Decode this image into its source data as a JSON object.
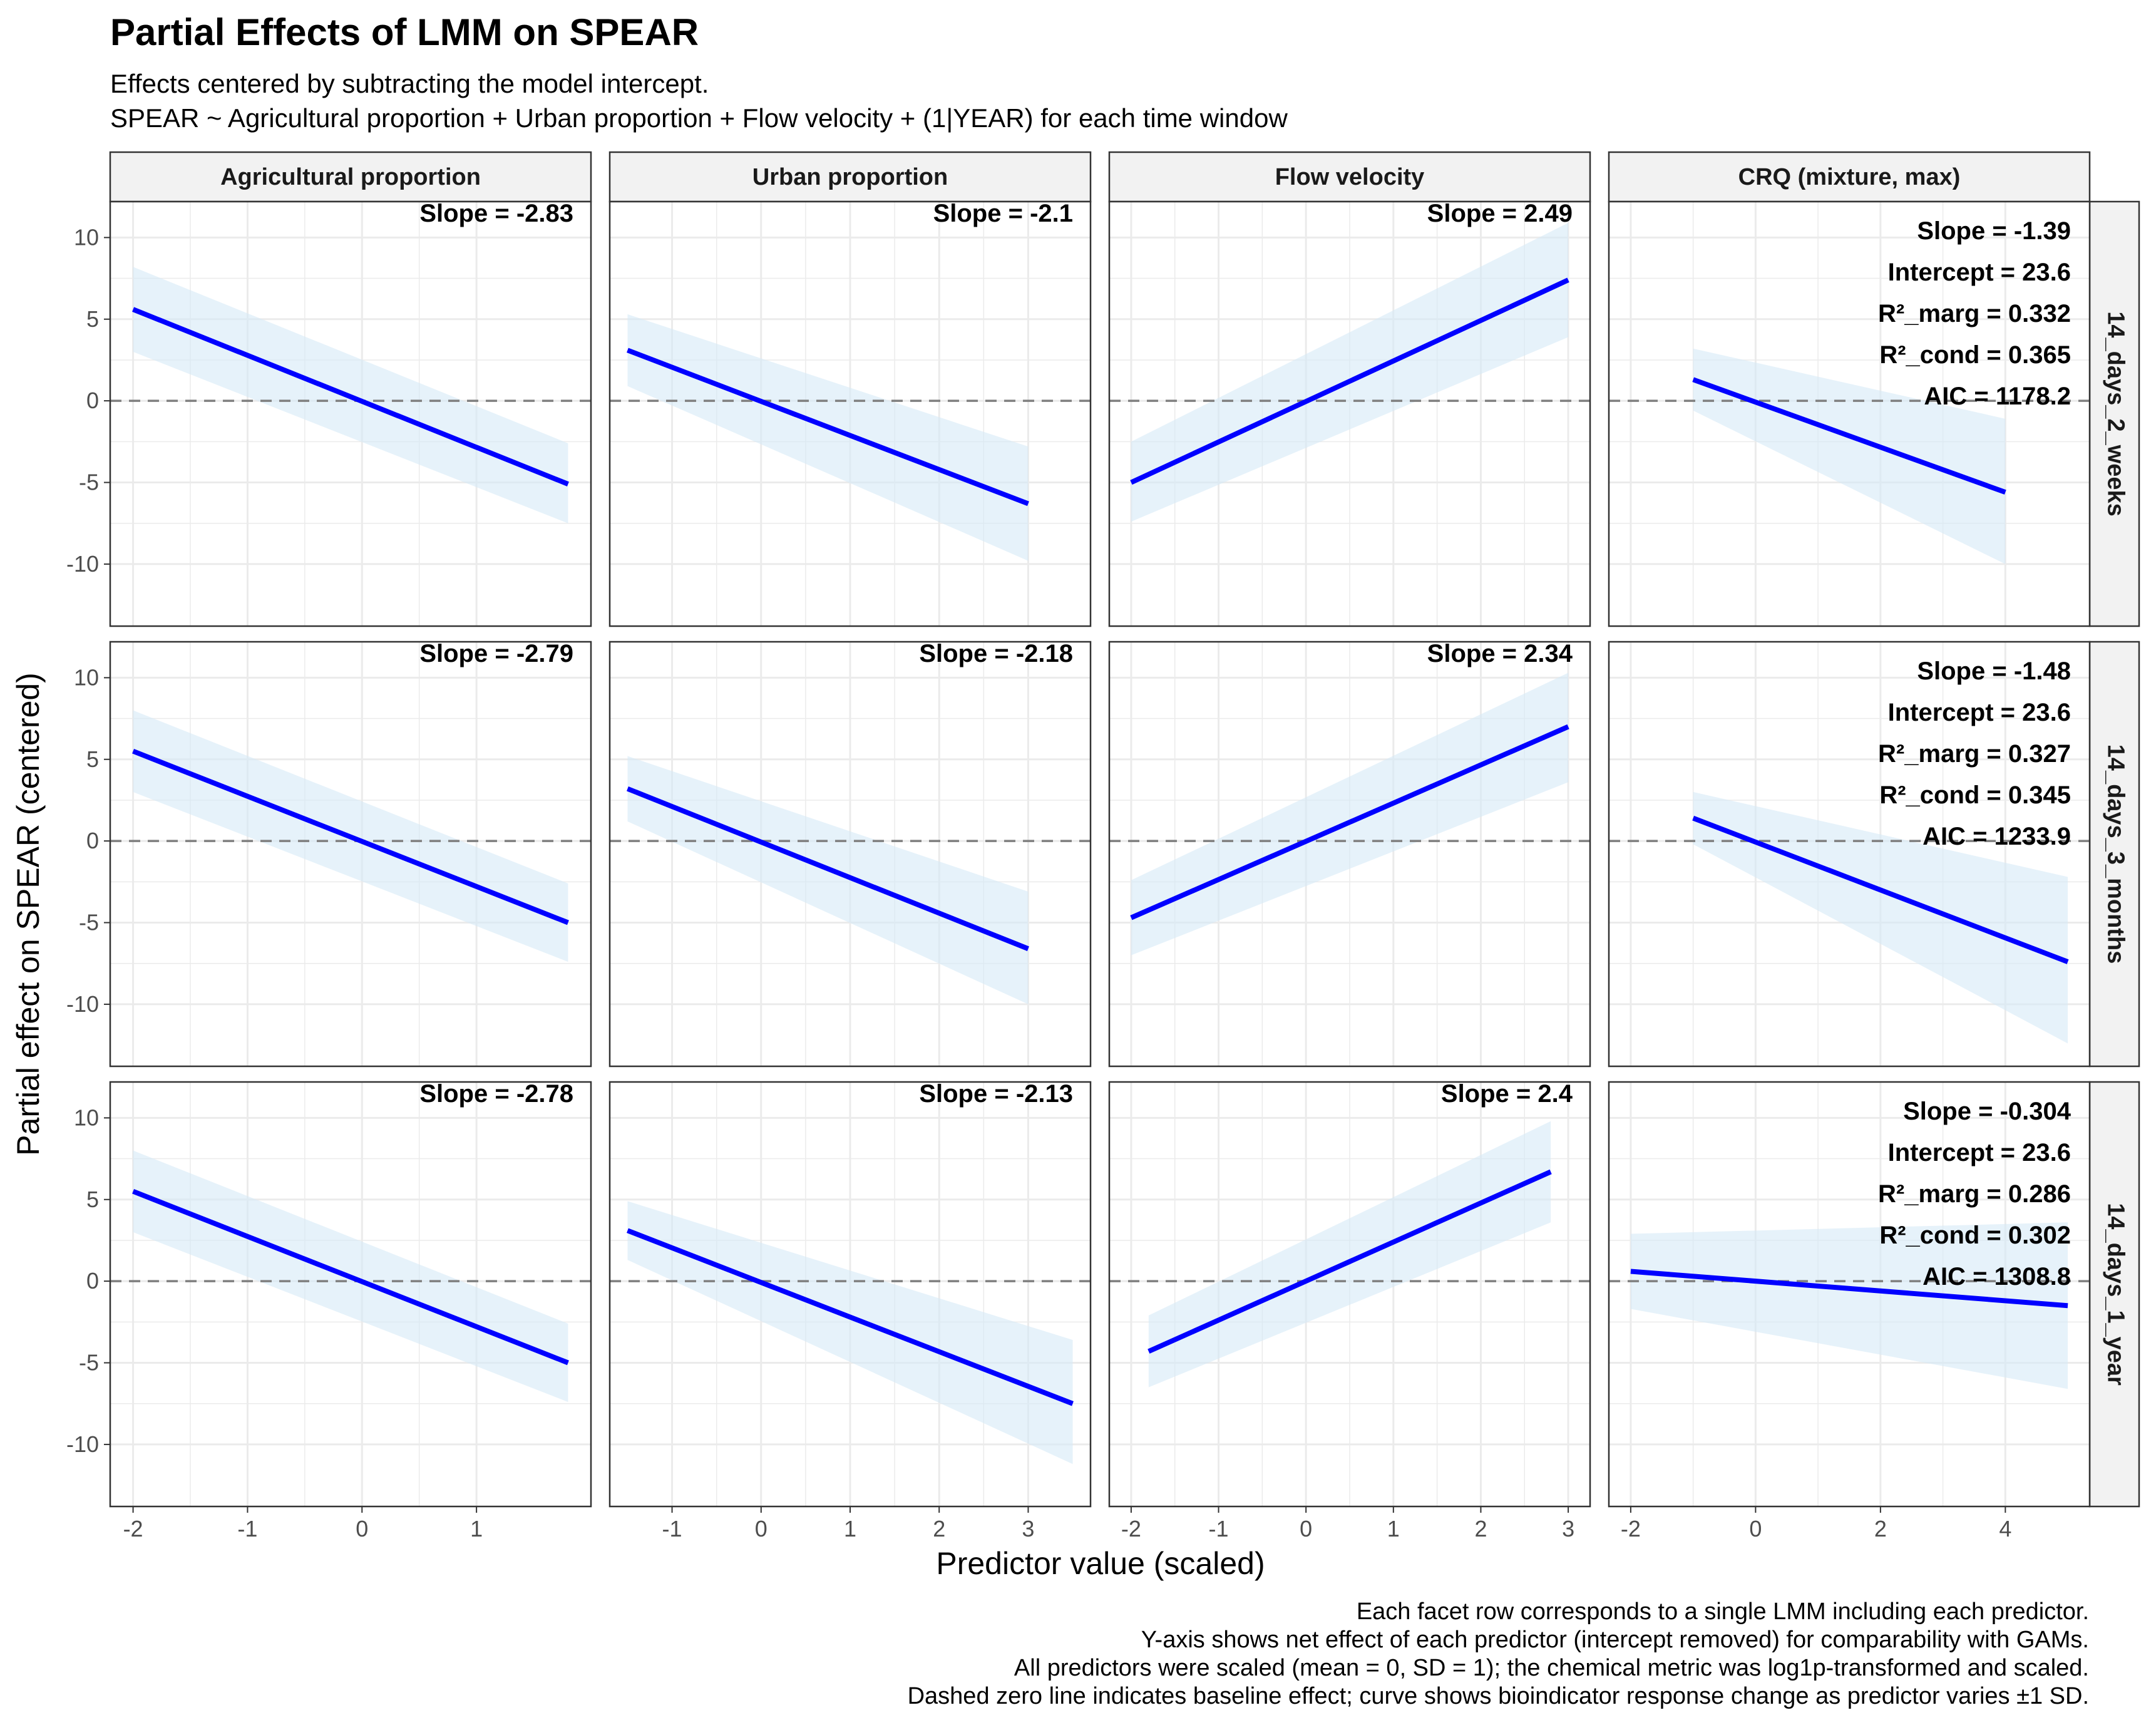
{
  "title": "Partial Effects of LMM on SPEAR",
  "subtitle_lines": [
    "Effects centered by subtracting the model intercept.",
    "SPEAR ~ Agricultural proportion + Urban proportion + Flow velocity + (1|YEAR) for each time window"
  ],
  "caption_lines": [
    "Each facet row corresponds to a single LMM including each predictor.",
    "Y-axis shows net effect of each predictor (intercept removed) for comparability with GAMs.",
    "All predictors were scaled (mean = 0, SD = 1); the chemical metric was log1p-transformed and scaled.",
    "Dashed zero line indicates baseline effect; curve shows bioindicator response change as predictor varies ±1 SD."
  ],
  "colors": {
    "line": "#0000FF",
    "ribbon": "#D6EAF6",
    "zero_line": "#7F7F7F",
    "grid": "#EBEBEB",
    "strip_fill": "#F2F2F2",
    "panel_border": "#333333"
  },
  "chart_data": {
    "type": "line",
    "xlabel": "Predictor value (scaled)",
    "ylabel": "Partial effect on SPEAR (centered)",
    "ylim": [
      -13.8,
      12.2
    ],
    "y_ticks": [
      -10,
      -5,
      0,
      5,
      10
    ],
    "grid": true,
    "zero_line": 0,
    "predictors": [
      {
        "label": "Agricultural proportion",
        "xlim": [
          -2.2,
          2.0
        ],
        "x_ticks": [
          -2,
          -1,
          0,
          1
        ],
        "x_tick_labels": [
          "-2",
          "-1",
          "0",
          "1"
        ]
      },
      {
        "label": "Urban proportion",
        "xlim": [
          -1.7,
          3.7
        ],
        "x_ticks": [
          -1,
          0,
          1,
          2,
          3
        ],
        "x_tick_labels": [
          "-1",
          "0",
          "1",
          "2",
          "3"
        ]
      },
      {
        "label": "Flow velocity",
        "xlim": [
          -2.25,
          3.25
        ],
        "x_ticks": [
          -2,
          -1,
          0,
          1,
          2,
          3
        ],
        "x_tick_labels": [
          "-2",
          "-1",
          "0",
          "1",
          "2",
          "3"
        ]
      },
      {
        "label": "CRQ (mixture, max)",
        "xlim": [
          -2.35,
          5.35
        ],
        "x_ticks": [
          -2,
          0,
          2,
          4
        ],
        "x_tick_labels": [
          "-2",
          "0",
          "2",
          "4"
        ]
      }
    ],
    "time_windows": [
      {
        "label": "14_days_2_weeks",
        "panels": [
          {
            "slope_label": "Slope = -2.83",
            "x": [
              -2.0,
              1.8
            ],
            "y": [
              5.6,
              -5.1
            ],
            "lower": [
              3.0,
              -7.5
            ],
            "upper": [
              8.2,
              -2.6
            ]
          },
          {
            "slope_label": "Slope = -2.1",
            "x": [
              -1.5,
              3.0
            ],
            "y": [
              3.1,
              -6.3
            ],
            "lower": [
              0.9,
              -9.8
            ],
            "upper": [
              5.3,
              -2.8
            ]
          },
          {
            "slope_label": "Slope = 2.49",
            "x": [
              -2.0,
              3.0
            ],
            "y": [
              -5.0,
              7.4
            ],
            "lower": [
              -7.4,
              3.9
            ],
            "upper": [
              -2.5,
              10.9
            ]
          },
          {
            "slope_label": "Slope = -1.39",
            "x": [
              -1.0,
              4.0
            ],
            "y": [
              1.3,
              -5.6
            ],
            "lower": [
              -0.6,
              -10.0
            ],
            "upper": [
              3.2,
              -1.1
            ]
          }
        ],
        "model_stats": [
          "Intercept = 23.6",
          "R²_marg = 0.332",
          "R²_cond = 0.365",
          "AIC = 1178.2"
        ]
      },
      {
        "label": "14_days_3_months",
        "panels": [
          {
            "slope_label": "Slope = -2.79",
            "x": [
              -2.0,
              1.8
            ],
            "y": [
              5.5,
              -5.0
            ],
            "lower": [
              3.0,
              -7.4
            ],
            "upper": [
              8.0,
              -2.6
            ]
          },
          {
            "slope_label": "Slope = -2.18",
            "x": [
              -1.5,
              3.0
            ],
            "y": [
              3.2,
              -6.6
            ],
            "lower": [
              1.2,
              -10.0
            ],
            "upper": [
              5.2,
              -3.1
            ]
          },
          {
            "slope_label": "Slope = 2.34",
            "x": [
              -2.0,
              3.0
            ],
            "y": [
              -4.7,
              7.0
            ],
            "lower": [
              -7.0,
              3.6
            ],
            "upper": [
              -2.4,
              10.3
            ]
          },
          {
            "slope_label": "Slope = -1.48",
            "x": [
              -1.0,
              5.0
            ],
            "y": [
              1.4,
              -7.4
            ],
            "lower": [
              -0.2,
              -12.4
            ],
            "upper": [
              3.0,
              -2.2
            ]
          }
        ],
        "model_stats": [
          "Intercept = 23.6",
          "R²_marg = 0.327",
          "R²_cond = 0.345",
          "AIC = 1233.9"
        ]
      },
      {
        "label": "14_days_1_year",
        "panels": [
          {
            "slope_label": "Slope = -2.78",
            "x": [
              -2.0,
              1.8
            ],
            "y": [
              5.5,
              -5.0
            ],
            "lower": [
              3.0,
              -7.4
            ],
            "upper": [
              8.0,
              -2.6
            ]
          },
          {
            "slope_label": "Slope = -2.13",
            "x": [
              -1.5,
              3.5
            ],
            "y": [
              3.1,
              -7.5
            ],
            "lower": [
              1.3,
              -11.2
            ],
            "upper": [
              4.9,
              -3.6
            ]
          },
          {
            "slope_label": "Slope = 2.4",
            "x": [
              -1.8,
              2.8
            ],
            "y": [
              -4.3,
              6.7
            ],
            "lower": [
              -6.5,
              3.6
            ],
            "upper": [
              -2.1,
              9.8
            ]
          },
          {
            "slope_label": "Slope = -0.304",
            "x": [
              -2.0,
              5.0
            ],
            "y": [
              0.6,
              -1.5
            ],
            "lower": [
              -1.7,
              -6.6
            ],
            "upper": [
              2.9,
              3.6
            ]
          }
        ],
        "model_stats": [
          "Intercept = 23.6",
          "R²_marg = 0.286",
          "R²_cond = 0.302",
          "AIC = 1308.8"
        ]
      }
    ]
  }
}
